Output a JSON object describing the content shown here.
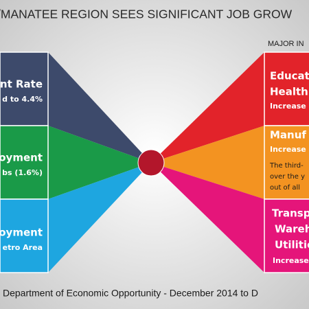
{
  "header": {
    "title": "/MANATEE REGION SEES SIGNIFICANT JOB GROW",
    "right_heading": "MAJOR IN"
  },
  "left_panels": [
    {
      "lines": [
        "nt Rate",
        "d to 4.4%"
      ]
    },
    {
      "lines": [
        "oyment",
        "bs (1.6%)"
      ]
    },
    {
      "lines": [
        "oyment",
        "etro Area"
      ]
    }
  ],
  "right_panels": [
    {
      "lines": [
        "Educat",
        "Health",
        "Increase"
      ]
    },
    {
      "lines": [
        "Manuf",
        "Increase"
      ],
      "note": [
        "The third-",
        "over the y",
        "out of all"
      ]
    },
    {
      "lines": [
        "Transp",
        "Wareh",
        "Utilitie",
        "Increase"
      ]
    }
  ],
  "footer": {
    "source": "Department of Economic Opportunity - December 2014 to D"
  }
}
